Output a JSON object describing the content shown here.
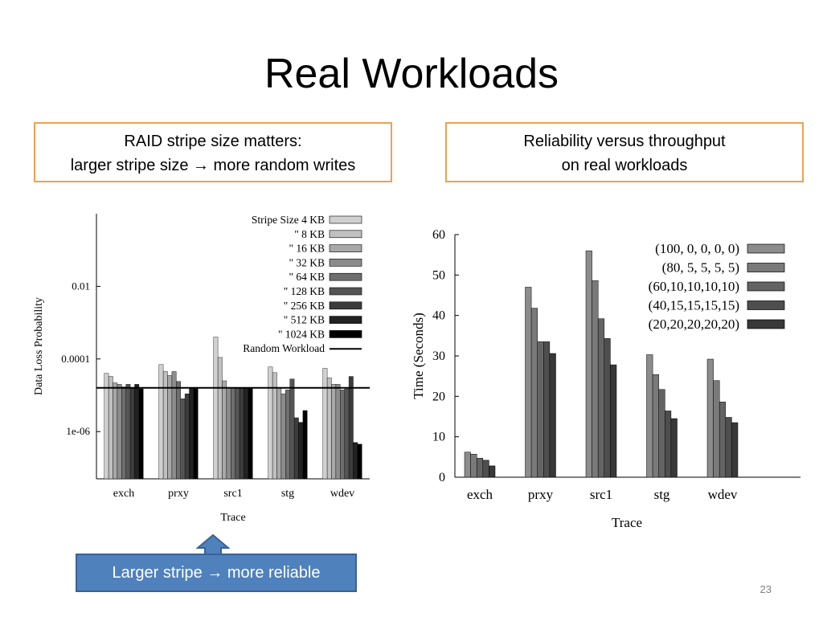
{
  "slide": {
    "title": "Real Workloads",
    "callout_left": {
      "line1": "RAID stripe size matters:",
      "line2": "larger stripe size → more random writes"
    },
    "callout_right": {
      "line1": "Reliability versus throughput",
      "line2": "on real workloads"
    },
    "bottom_box": "Larger stripe → more reliable",
    "page_number": "23"
  },
  "chart_data": [
    {
      "type": "bar",
      "title": "",
      "xlabel": "Trace",
      "ylabel": "Data Loss Probability",
      "yscale": "log",
      "ylim": [
        5e-08,
        1
      ],
      "yticks": [
        0.01,
        0.0001,
        1e-06
      ],
      "ytick_labels": [
        "0.01",
        "0.0001",
        "1e-06"
      ],
      "categories": [
        "exch",
        "prxy",
        "src1",
        "stg",
        "wdev"
      ],
      "legend_position": "top-right",
      "series": [
        {
          "name": "Stripe Size 4 KB",
          "color": "#d0d0d0",
          "values": [
            4e-05,
            7e-05,
            0.0004,
            6e-05,
            5.5e-05
          ]
        },
        {
          "name": "\" 8 KB",
          "color": "#c0c0c0",
          "values": [
            3.3e-05,
            4.5e-05,
            0.00011,
            4.2e-05,
            3e-05
          ]
        },
        {
          "name": "\" 16 KB",
          "color": "#a8a8a8",
          "values": [
            2.2e-05,
            3.5e-05,
            2.5e-05,
            1.6e-05,
            2e-05
          ]
        },
        {
          "name": "\" 32 KB",
          "color": "#8c8c8c",
          "values": [
            2e-05,
            4.5e-05,
            1.6e-05,
            1.1e-05,
            2e-05
          ]
        },
        {
          "name": "\" 64 KB",
          "color": "#6e6e6e",
          "values": [
            1.7e-05,
            2.4e-05,
            1.6e-05,
            1.4e-05,
            1.4e-05
          ]
        },
        {
          "name": "\" 128 KB",
          "color": "#555555",
          "values": [
            2e-05,
            8e-06,
            1.6e-05,
            2.8e-05,
            1.5e-05
          ]
        },
        {
          "name": "\" 256 KB",
          "color": "#3c3c3c",
          "values": [
            1.6e-05,
            1.1e-05,
            1.6e-05,
            2.4e-06,
            3.3e-05
          ]
        },
        {
          "name": "\" 512 KB",
          "color": "#222222",
          "values": [
            2e-05,
            1.6e-05,
            1.6e-05,
            1.8e-06,
            5e-07
          ]
        },
        {
          "name": "\" 1024 KB",
          "color": "#000000",
          "values": [
            1.5e-05,
            1.6e-05,
            1.6e-05,
            3.8e-06,
            4.5e-07
          ]
        }
      ],
      "reference_line": {
        "name": "Random Workload",
        "value": 1.6e-05,
        "color": "#000000"
      }
    },
    {
      "type": "bar",
      "title": "",
      "xlabel": "Trace",
      "ylabel": "Time (Seconds)",
      "ylim": [
        0,
        60
      ],
      "yticks": [
        0,
        10,
        20,
        30,
        40,
        50,
        60
      ],
      "categories": [
        "exch",
        "prxy",
        "src1",
        "stg",
        "wdev"
      ],
      "legend_position": "top-right",
      "series": [
        {
          "name": "(100, 0, 0, 0, 0)",
          "color": "#8c8c8c",
          "values": [
            6.2,
            47,
            56,
            30.3,
            29.2
          ]
        },
        {
          "name": "(80, 5, 5, 5, 5)",
          "color": "#7a7a7a",
          "values": [
            5.7,
            41.8,
            48.6,
            25.4,
            23.9
          ]
        },
        {
          "name": "(60,10,10,10,10)",
          "color": "#646464",
          "values": [
            4.7,
            33.5,
            39.2,
            21.7,
            18.6
          ]
        },
        {
          "name": "(40,15,15,15,15)",
          "color": "#4e4e4e",
          "values": [
            4.2,
            33.5,
            34.3,
            16.4,
            14.8
          ]
        },
        {
          "name": "(20,20,20,20,20)",
          "color": "#383838",
          "values": [
            2.8,
            30.6,
            27.8,
            14.5,
            13.5
          ]
        }
      ]
    }
  ]
}
